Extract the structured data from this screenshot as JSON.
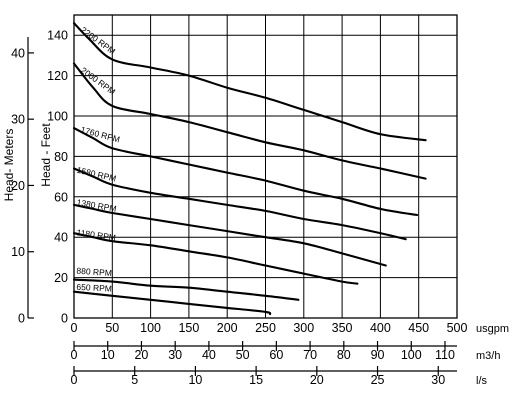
{
  "chart_data": {
    "type": "line",
    "title": "",
    "xlabel": "",
    "ylabel_left_outer": "Head- Meters",
    "ylabel_left_inner": "Head - Feet",
    "x_units": "usgpm",
    "xlim": [
      0,
      500
    ],
    "ylim": [
      0,
      150
    ],
    "y_ticks": [
      0,
      20,
      40,
      60,
      80,
      100,
      120,
      140
    ],
    "meters_ticks": [
      0,
      10,
      20,
      30,
      40
    ],
    "grid": true,
    "x_axes": [
      {
        "unit": "usgpm",
        "ticks": [
          0,
          50,
          100,
          150,
          200,
          250,
          300,
          350,
          400,
          450,
          500
        ]
      },
      {
        "unit": "m3/h",
        "ticks": [
          0,
          10,
          20,
          30,
          40,
          50,
          60,
          70,
          80,
          90,
          100,
          110
        ]
      },
      {
        "unit": "l/s",
        "ticks": [
          0,
          5,
          10,
          15,
          20,
          25,
          30
        ]
      }
    ],
    "series": [
      {
        "name": "2200 RPM",
        "points": [
          [
            0,
            146
          ],
          [
            20,
            138
          ],
          [
            50,
            128
          ],
          [
            100,
            124
          ],
          [
            150,
            120
          ],
          [
            200,
            114
          ],
          [
            250,
            109
          ],
          [
            300,
            103
          ],
          [
            350,
            97
          ],
          [
            400,
            91
          ],
          [
            459,
            88
          ]
        ]
      },
      {
        "name": "2000 RPM",
        "points": [
          [
            0,
            126
          ],
          [
            25,
            114
          ],
          [
            50,
            105
          ],
          [
            100,
            101
          ],
          [
            150,
            97
          ],
          [
            200,
            92
          ],
          [
            250,
            87
          ],
          [
            300,
            83
          ],
          [
            350,
            78
          ],
          [
            400,
            74
          ],
          [
            459,
            69
          ]
        ]
      },
      {
        "name": "1760 RPM",
        "points": [
          [
            0,
            94
          ],
          [
            25,
            89
          ],
          [
            50,
            84
          ],
          [
            100,
            80
          ],
          [
            150,
            76
          ],
          [
            200,
            72
          ],
          [
            250,
            68
          ],
          [
            300,
            63
          ],
          [
            350,
            59
          ],
          [
            400,
            54
          ],
          [
            448,
            51
          ]
        ]
      },
      {
        "name": "1580 RPM",
        "points": [
          [
            0,
            74
          ],
          [
            25,
            70
          ],
          [
            50,
            66
          ],
          [
            100,
            62
          ],
          [
            150,
            59
          ],
          [
            200,
            56
          ],
          [
            250,
            53
          ],
          [
            300,
            49
          ],
          [
            350,
            46
          ],
          [
            400,
            42
          ],
          [
            433,
            39
          ]
        ]
      },
      {
        "name": "1380 RPM",
        "points": [
          [
            0,
            56
          ],
          [
            25,
            54
          ],
          [
            50,
            52
          ],
          [
            100,
            49
          ],
          [
            150,
            46
          ],
          [
            200,
            43
          ],
          [
            250,
            40
          ],
          [
            300,
            37
          ],
          [
            350,
            32
          ],
          [
            407,
            26
          ]
        ]
      },
      {
        "name": "1180 RPM",
        "points": [
          [
            0,
            42
          ],
          [
            25,
            40
          ],
          [
            50,
            38
          ],
          [
            100,
            36
          ],
          [
            150,
            33
          ],
          [
            200,
            30
          ],
          [
            250,
            26
          ],
          [
            300,
            22
          ],
          [
            350,
            18
          ],
          [
            370,
            17
          ]
        ]
      },
      {
        "name": "880 RPM",
        "points": [
          [
            0,
            19
          ],
          [
            50,
            18
          ],
          [
            100,
            16
          ],
          [
            150,
            15
          ],
          [
            200,
            13
          ],
          [
            250,
            11
          ],
          [
            293,
            9
          ]
        ]
      },
      {
        "name": "650 RPM",
        "points": [
          [
            0,
            13
          ],
          [
            50,
            11
          ],
          [
            100,
            9
          ],
          [
            150,
            7
          ],
          [
            200,
            5
          ],
          [
            250,
            3
          ],
          [
            256,
            2
          ]
        ]
      }
    ],
    "curve_labels": [
      {
        "text": "2200 RPM",
        "x": 8,
        "y": 142,
        "angle": 36
      },
      {
        "text": "2000 RPM",
        "x": 8,
        "y": 122,
        "angle": 36
      },
      {
        "text": "1760 RPM",
        "x": 8,
        "y": 92,
        "angle": 15
      },
      {
        "text": "1580 RPM",
        "x": 3,
        "y": 72,
        "angle": 13
      },
      {
        "text": "1380 RPM",
        "x": 3,
        "y": 56,
        "angle": 10
      },
      {
        "text": "1180 RPM",
        "x": 3,
        "y": 41,
        "angle": 8
      },
      {
        "text": "880 RPM",
        "x": 3,
        "y": 22,
        "angle": 4
      },
      {
        "text": "650 RPM",
        "x": 3,
        "y": 14,
        "angle": 3
      }
    ]
  }
}
